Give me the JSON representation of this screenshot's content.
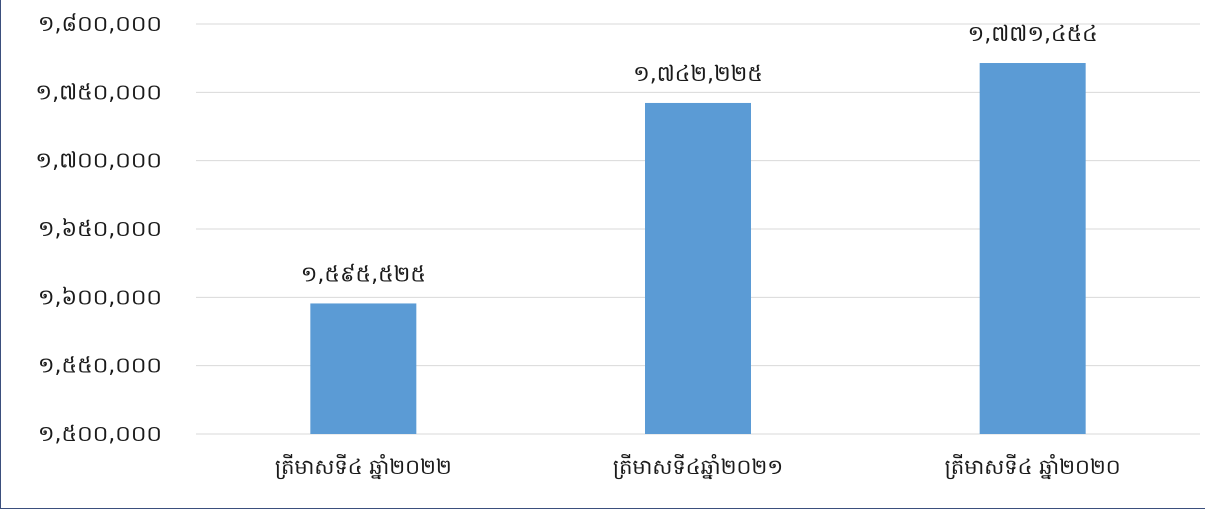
{
  "chart_data": {
    "type": "bar",
    "categories": [
      "ត្រីមាសទី៤ ឆ្នាំ២០២២",
      "ត្រីមាសទី៤ឆ្នាំ២០២១",
      "ត្រីមាសទី៤ ឆ្នាំ២០២០"
    ],
    "values": [
      1595525,
      1742225,
      1771454
    ],
    "value_labels": [
      "១,៥៩៥,៥២៥",
      "១,៧៤២,២២៥",
      "១,៧៧១,៤៥៤"
    ],
    "y_ticks": [
      1500000,
      1550000,
      1600000,
      1650000,
      1700000,
      1750000,
      1800000
    ],
    "y_tick_labels": [
      "១,៥០០,០០០",
      "១,៥៥០,០០០",
      "១,៦០០,០០០",
      "១,៦៥០,០០០",
      "១,៧០០,០០០",
      "១,៧៥០,០០០",
      "១,៨០០,០០០"
    ],
    "ylim": [
      1500000,
      1800000
    ],
    "grid": true,
    "bar_color": "#5b9bd5",
    "grid_color": "#d9d9d9",
    "title": "",
    "xlabel": "",
    "ylabel": ""
  }
}
